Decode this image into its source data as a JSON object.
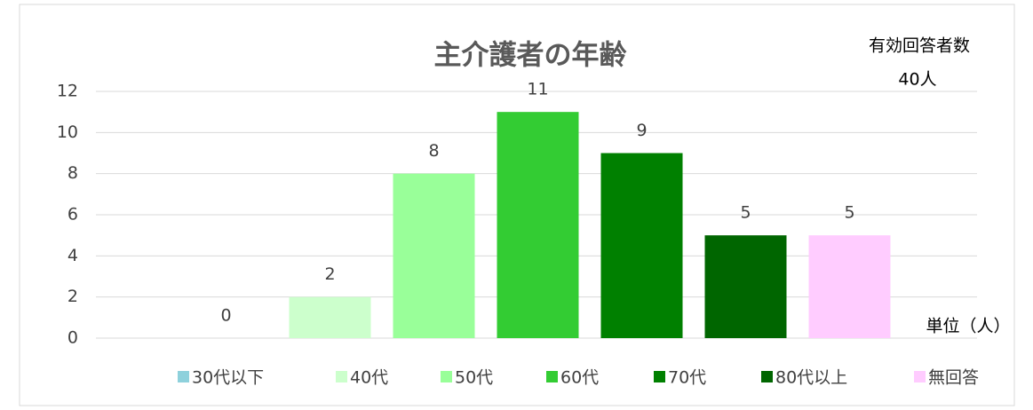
{
  "chart_data": {
    "type": "bar",
    "title": "主介護者の年齢",
    "categories": [
      "30代以下",
      "40代",
      "50代",
      "60代",
      "70代",
      "80代以上",
      "無回答"
    ],
    "values": [
      0,
      2,
      8,
      11,
      9,
      5,
      5
    ],
    "colors": [
      "#8ed1dc",
      "#ccffcc",
      "#99ff99",
      "#33cc33",
      "#008000",
      "#006600",
      "#ffccff"
    ],
    "ylim": [
      0,
      12
    ],
    "yticks": [
      0,
      2,
      4,
      6,
      8,
      10,
      12
    ],
    "grid": true,
    "annotations": [
      "有効回答者数",
      "40人",
      "単位（人）"
    ]
  }
}
